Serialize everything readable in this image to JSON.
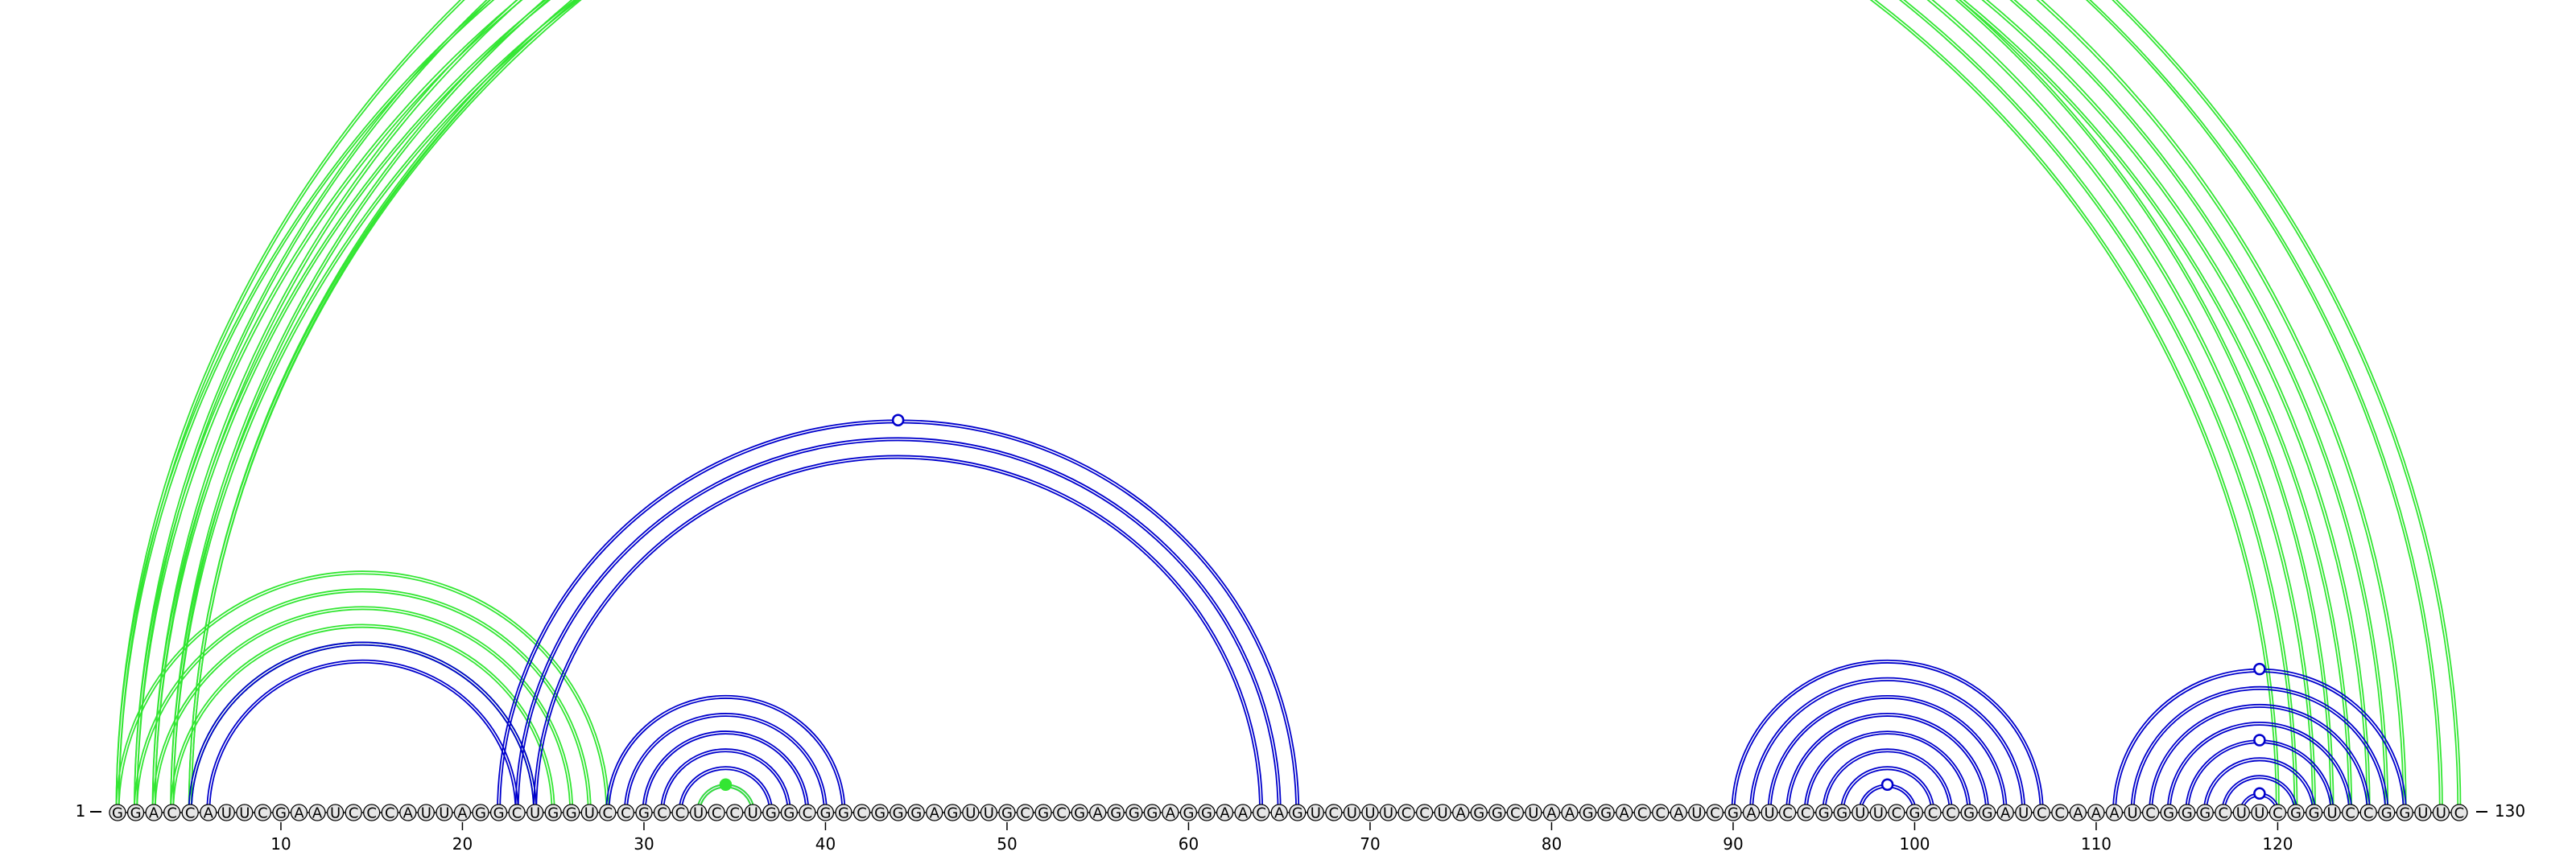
{
  "sequence": "GGACCAUUCGAAUCCCAUUAGGCUGGUCCGCCUCCUGGCGGCGGGAGUUGCGCGAGGGAGGAACAGUCUUUCCUAGGCUAAGGACCAUCGAUCCGGUUCGCCGGAUCCAAAUCGGGCUUCGGUCCGGUUC",
  "start_label": "1",
  "end_label": "130",
  "ticks": [
    "10",
    "20",
    "30",
    "40",
    "50",
    "60",
    "70",
    "80",
    "90",
    "100",
    "110",
    "120"
  ],
  "colors": {
    "upper_arcs": "#33e633",
    "lower_arcs": "#0000cc",
    "nucleotide_fill": "#e6e6e6"
  },
  "arc_groups": [
    {
      "color": "upper_arcs",
      "pairs": [
        [
          1,
          130
        ],
        [
          2,
          129
        ],
        [
          3,
          127
        ],
        [
          4,
          126
        ],
        [
          5,
          125
        ],
        [
          1,
          123
        ],
        [
          2,
          122
        ],
        [
          3,
          121
        ],
        [
          4,
          120
        ],
        [
          5,
          124
        ]
      ],
      "label_i": 1,
      "label_j": 130
    },
    {
      "color": "upper_arcs",
      "pairs": [
        [
          1,
          28
        ],
        [
          2,
          27
        ],
        [
          3,
          26
        ],
        [
          4,
          25
        ],
        [
          5,
          24
        ]
      ]
    },
    {
      "color": "lower_arcs",
      "pairs": [
        [
          5,
          24
        ],
        [
          6,
          23
        ],
        [
          22,
          66
        ],
        [
          23,
          65
        ],
        [
          24,
          64
        ]
      ]
    },
    {
      "color": "lower_arcs",
      "pairs": [
        [
          28,
          41
        ],
        [
          29,
          40
        ],
        [
          30,
          39
        ],
        [
          31,
          38
        ],
        [
          32,
          37
        ],
        [
          33,
          36
        ]
      ]
    },
    {
      "color": "upper_arcs",
      "pairs": [
        [
          33,
          36
        ]
      ]
    },
    {
      "color": "lower_arcs",
      "pairs": [
        [
          90,
          107
        ],
        [
          91,
          106
        ],
        [
          92,
          105
        ],
        [
          93,
          104
        ],
        [
          94,
          103
        ],
        [
          95,
          102
        ],
        [
          96,
          101
        ],
        [
          97,
          100
        ]
      ]
    },
    {
      "color": "lower_arcs",
      "pairs": [
        [
          111,
          127
        ],
        [
          112,
          126
        ],
        [
          113,
          125
        ],
        [
          114,
          124
        ],
        [
          115,
          123
        ],
        [
          116,
          122
        ],
        [
          117,
          121
        ],
        [
          118,
          120
        ]
      ]
    }
  ],
  "markers": [
    {
      "i": 1,
      "j": 130,
      "color": "upper_arcs",
      "filled": false
    },
    {
      "i": 22,
      "j": 66,
      "color": "lower_arcs",
      "filled": false
    },
    {
      "i": 33,
      "j": 36,
      "color": "upper_arcs",
      "filled": true
    },
    {
      "i": 97,
      "j": 100,
      "color": "lower_arcs",
      "filled": false
    },
    {
      "i": 111,
      "j": 127,
      "color": "lower_arcs",
      "filled": false
    },
    {
      "i": 115,
      "j": 123,
      "color": "lower_arcs",
      "filled": false
    },
    {
      "i": 118,
      "j": 120,
      "color": "lower_arcs",
      "filled": false
    }
  ]
}
